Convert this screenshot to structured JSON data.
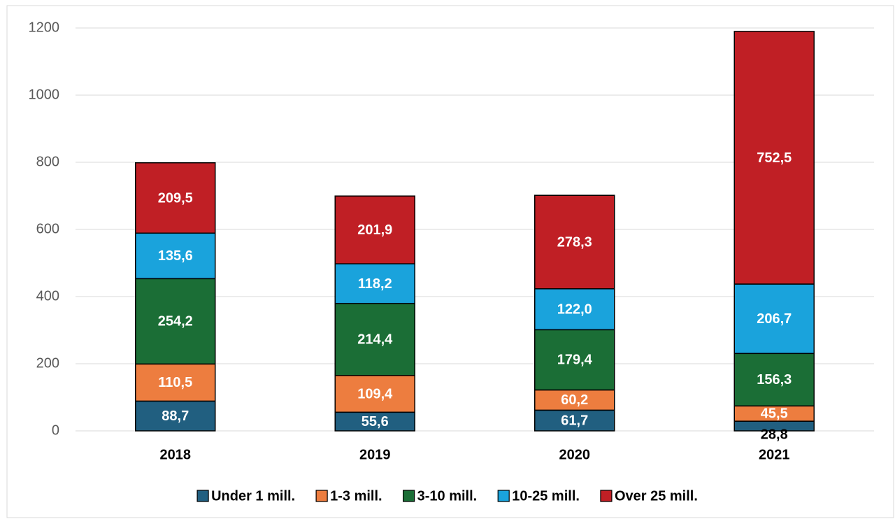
{
  "chart_data": {
    "type": "stacked_bar",
    "categories": [
      "2018",
      "2019",
      "2020",
      "2021"
    ],
    "series": [
      {
        "name": "Under 1 mill.",
        "color": "#215f80",
        "values": [
          88.7,
          55.6,
          61.7,
          28.8
        ],
        "value_labels": [
          "88,7",
          "55,6",
          "61,7",
          "28,8"
        ]
      },
      {
        "name": "1-3 mill.",
        "color": "#ed7d3f",
        "values": [
          110.5,
          109.4,
          60.2,
          45.5
        ],
        "value_labels": [
          "110,5",
          "109,4",
          "60,2",
          "45,5"
        ]
      },
      {
        "name": "3-10 mill.",
        "color": "#1b6e36",
        "values": [
          254.2,
          214.4,
          179.4,
          156.3
        ],
        "value_labels": [
          "254,2",
          "214,4",
          "179,4",
          "156,3"
        ]
      },
      {
        "name": "10-25 mill.",
        "color": "#1aa3dc",
        "values": [
          135.6,
          118.2,
          122.0,
          206.7
        ],
        "value_labels": [
          "135,6",
          "118,2",
          "122,0",
          "206,7"
        ]
      },
      {
        "name": "Over 25 mill.",
        "color": "#c01f25",
        "values": [
          209.5,
          201.9,
          278.3,
          752.5
        ],
        "value_labels": [
          "209,5",
          "201,9",
          "278,3",
          "752,5"
        ]
      }
    ],
    "ylim": [
      0,
      1200
    ],
    "yticks": [
      0,
      200,
      400,
      600,
      800,
      1000,
      1200
    ],
    "grid": true,
    "legend": "bottom"
  }
}
